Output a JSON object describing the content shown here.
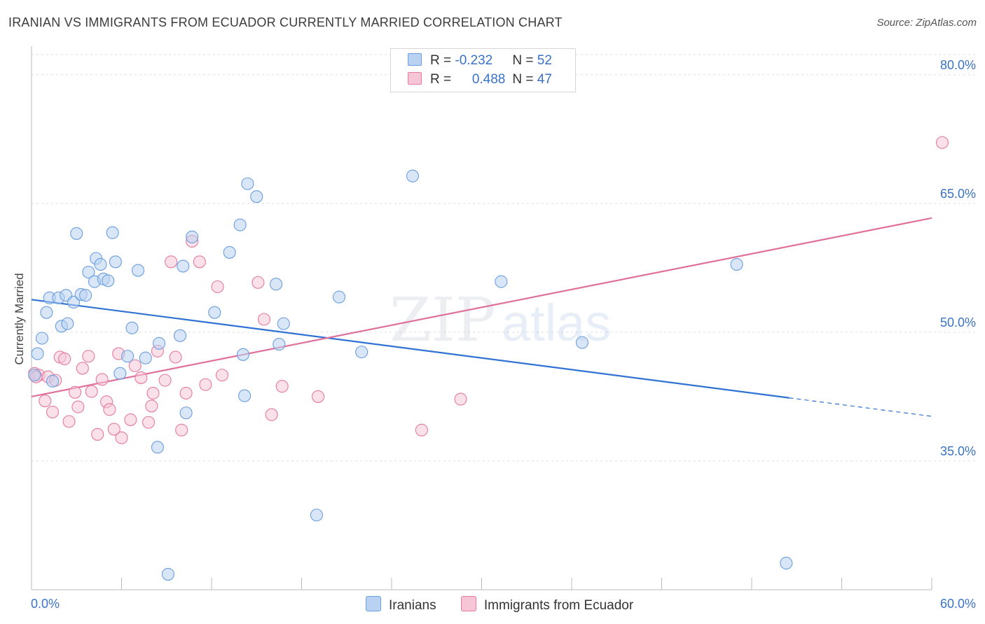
{
  "header": {
    "title": "IRANIAN VS IMMIGRANTS FROM ECUADOR CURRENTLY MARRIED CORRELATION CHART",
    "source": "Source: ZipAtlas.com"
  },
  "legend": {
    "series1": {
      "r_label": "R = ",
      "r_value": "-0.232",
      "n_label": "N = ",
      "n_value": "52"
    },
    "series2": {
      "r_label": "R = ",
      "r_value": "0.488",
      "n_label": "N = ",
      "n_value": "47"
    }
  },
  "watermark": {
    "zip": "ZIP",
    "atlas": "atlas"
  },
  "chart_data": {
    "type": "scatter",
    "xlabel": "",
    "ylabel": "Currently Married",
    "xlim": [
      0,
      60
    ],
    "ylim": [
      20,
      83
    ],
    "x_tick_labels": [
      "0.0%",
      "60.0%"
    ],
    "y_ticks": [
      35,
      50,
      65,
      80
    ],
    "y_tick_labels": [
      "35.0%",
      "50.0%",
      "65.0%",
      "80.0%"
    ],
    "grid": true,
    "legend_position": "top-center",
    "series": [
      {
        "name": "Iranians",
        "color": "#6a9ee0",
        "fill": "#b9d2f2",
        "trend": {
          "x0": 0,
          "y0": 53.8,
          "x1": 60,
          "y1": 40.2,
          "solid_until": 50.5
        },
        "points": [
          [
            0.2,
            45.0
          ],
          [
            0.4,
            47.5
          ],
          [
            0.7,
            49.3
          ],
          [
            1.0,
            52.3
          ],
          [
            1.2,
            54.0
          ],
          [
            1.4,
            44.3
          ],
          [
            1.8,
            54.0
          ],
          [
            2.0,
            50.7
          ],
          [
            2.4,
            51.0
          ],
          [
            2.3,
            54.3
          ],
          [
            2.8,
            53.5
          ],
          [
            3.0,
            61.5
          ],
          [
            3.3,
            54.4
          ],
          [
            3.6,
            54.3
          ],
          [
            3.8,
            57.0
          ],
          [
            4.2,
            55.9
          ],
          [
            4.3,
            58.6
          ],
          [
            4.6,
            57.9
          ],
          [
            4.8,
            56.2
          ],
          [
            5.1,
            56.0
          ],
          [
            5.4,
            61.6
          ],
          [
            5.6,
            58.2
          ],
          [
            5.9,
            45.2
          ],
          [
            6.4,
            47.2
          ],
          [
            6.7,
            50.5
          ],
          [
            7.1,
            57.2
          ],
          [
            7.6,
            47.0
          ],
          [
            8.4,
            36.6
          ],
          [
            8.5,
            48.7
          ],
          [
            9.1,
            21.8
          ],
          [
            9.9,
            49.6
          ],
          [
            10.1,
            57.7
          ],
          [
            10.3,
            40.6
          ],
          [
            10.7,
            61.1
          ],
          [
            12.2,
            52.3
          ],
          [
            13.2,
            59.3
          ],
          [
            13.9,
            62.5
          ],
          [
            14.1,
            47.4
          ],
          [
            14.2,
            42.6
          ],
          [
            14.4,
            67.3
          ],
          [
            15.0,
            65.8
          ],
          [
            16.3,
            55.6
          ],
          [
            16.5,
            48.6
          ],
          [
            16.8,
            51.0
          ],
          [
            20.5,
            54.1
          ],
          [
            22.0,
            47.7
          ],
          [
            25.4,
            68.2
          ],
          [
            31.3,
            55.9
          ],
          [
            36.7,
            48.8
          ],
          [
            47.0,
            57.9
          ],
          [
            50.3,
            23.1
          ],
          [
            19.0,
            28.7
          ]
        ]
      },
      {
        "name": "Immigrants from Ecuador",
        "color": "#e67aa0",
        "fill": "#f6c6d6",
        "trend": {
          "x0": 0,
          "y0": 42.5,
          "x1": 60,
          "y1": 63.3
        },
        "points": [
          [
            0.2,
            45.2
          ],
          [
            0.5,
            45.0
          ],
          [
            0.9,
            42.0
          ],
          [
            1.1,
            44.8
          ],
          [
            1.4,
            40.7
          ],
          [
            1.6,
            44.4
          ],
          [
            1.9,
            47.1
          ],
          [
            2.2,
            46.9
          ],
          [
            2.5,
            39.6
          ],
          [
            2.9,
            43.0
          ],
          [
            3.1,
            41.3
          ],
          [
            3.4,
            45.8
          ],
          [
            3.8,
            47.2
          ],
          [
            4.0,
            43.1
          ],
          [
            4.4,
            38.1
          ],
          [
            4.7,
            44.5
          ],
          [
            5.0,
            41.9
          ],
          [
            5.2,
            41.0
          ],
          [
            5.5,
            38.7
          ],
          [
            5.8,
            47.5
          ],
          [
            6.0,
            37.7
          ],
          [
            6.6,
            39.8
          ],
          [
            6.9,
            46.1
          ],
          [
            7.3,
            44.7
          ],
          [
            7.8,
            39.5
          ],
          [
            8.0,
            41.4
          ],
          [
            8.1,
            42.9
          ],
          [
            8.4,
            47.8
          ],
          [
            8.9,
            44.4
          ],
          [
            9.3,
            58.2
          ],
          [
            9.6,
            47.1
          ],
          [
            10.0,
            38.6
          ],
          [
            10.3,
            42.9
          ],
          [
            10.7,
            60.6
          ],
          [
            11.2,
            58.2
          ],
          [
            11.6,
            43.9
          ],
          [
            12.4,
            55.3
          ],
          [
            12.7,
            45.0
          ],
          [
            15.1,
            55.8
          ],
          [
            15.5,
            51.5
          ],
          [
            16.0,
            40.4
          ],
          [
            16.7,
            43.7
          ],
          [
            19.1,
            42.5
          ],
          [
            26.0,
            38.6
          ],
          [
            28.6,
            42.2
          ],
          [
            60.7,
            72.1
          ],
          [
            0.3,
            44.8
          ]
        ]
      }
    ]
  }
}
